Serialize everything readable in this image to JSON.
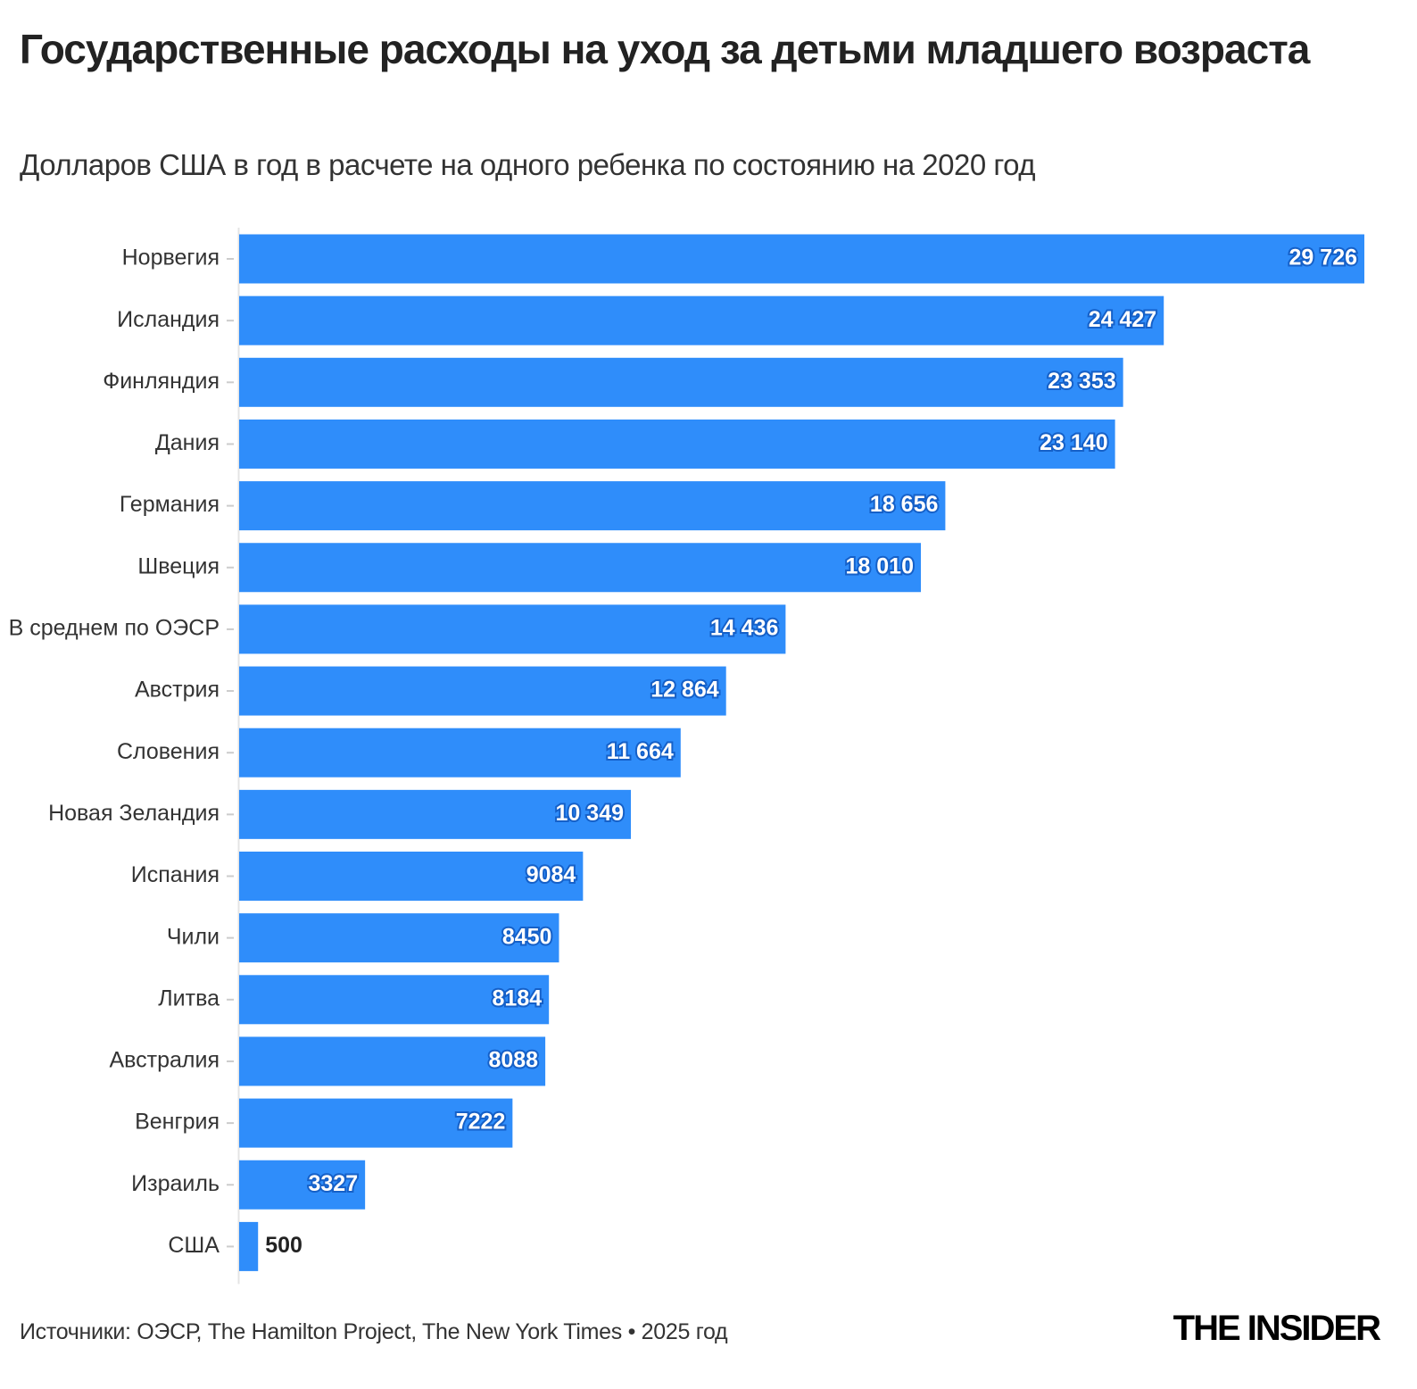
{
  "chart_data": {
    "type": "barh",
    "title": "Государственные расходы на уход за детьми младшего возраста",
    "subtitle": "Долларов США в год в расчете на одного ребенка по состоянию на 2020 год",
    "categories": [
      "Норвегия",
      "Исландия",
      "Финляндия",
      "Дания",
      "Германия",
      "Швеция",
      "В среднем по ОЭСР",
      "Австрия",
      "Словения",
      "Новая Зеландия",
      "Испания",
      "Чили",
      "Литва",
      "Австралия",
      "Венгрия",
      "Израиль",
      "США"
    ],
    "values": [
      29726,
      24427,
      23353,
      23140,
      18656,
      18010,
      14436,
      12864,
      11664,
      10349,
      9084,
      8450,
      8184,
      8088,
      7222,
      3327,
      500
    ],
    "value_labels": [
      "29 726",
      "24 427",
      "23 353",
      "23 140",
      "18 656",
      "18 010",
      "14 436",
      "12 864",
      "11 664",
      "10 349",
      "9084",
      "8450",
      "8184",
      "8088",
      "7222",
      "3327",
      "500"
    ],
    "color": "#2f8dfa",
    "source": "Источники: ОЭСР, The Hamilton Project, The New York Times • 2025 год",
    "brand": "THE INSIDER"
  }
}
